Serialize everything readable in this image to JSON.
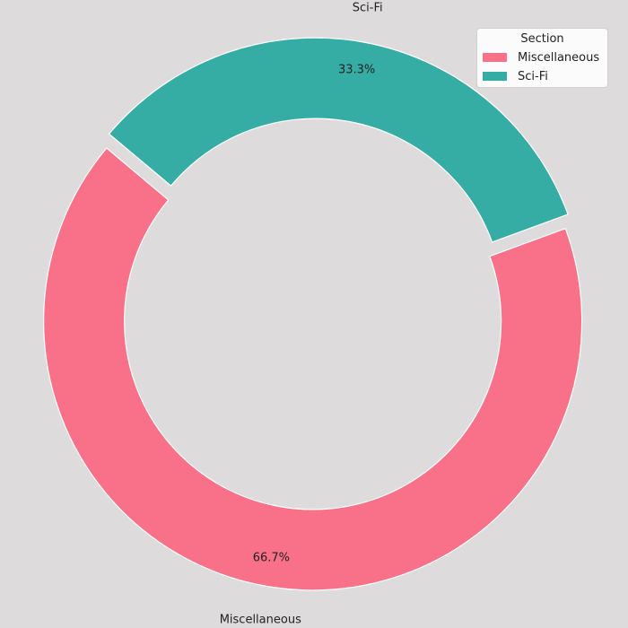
{
  "chart_data": {
    "type": "donut",
    "title": "",
    "legend": {
      "title": "Section",
      "placement": "top-right"
    },
    "slices": [
      {
        "label": "Miscellaneous",
        "value": 66.7,
        "pct_label": "66.7%",
        "color": "#f87189"
      },
      {
        "label": "Sci-Fi",
        "value": 33.3,
        "pct_label": "33.3%",
        "color": "#36ada4"
      }
    ]
  }
}
